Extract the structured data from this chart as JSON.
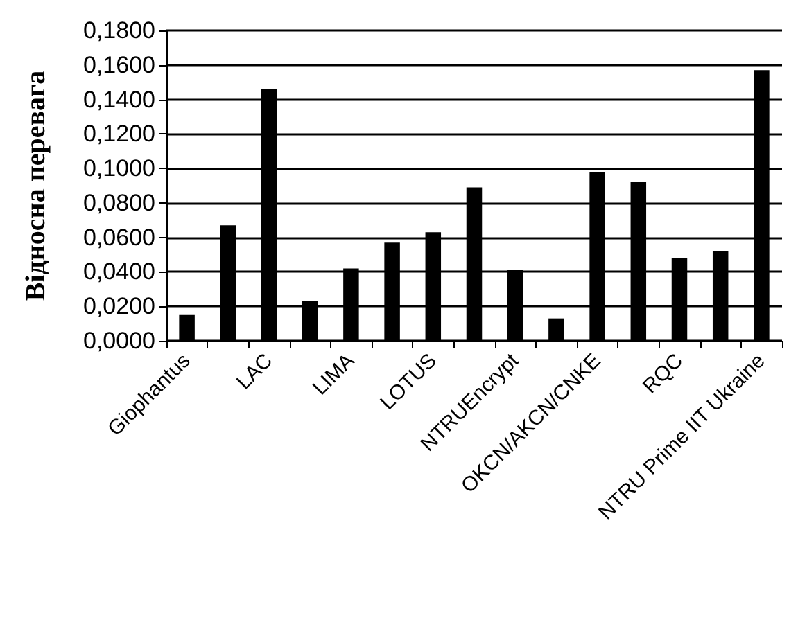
{
  "chart_data": {
    "type": "bar",
    "ylabel": "Відносна перевага",
    "categories": [
      "Giophantus",
      null,
      "LAC",
      null,
      "LIMA",
      null,
      "LOTUS",
      null,
      "NTRUEncrypt",
      null,
      "OKCN/AKCN/CNKE",
      null,
      "RQC",
      null,
      "NTRU Prime IIT Ukraine"
    ],
    "values": [
      0.015,
      0.067,
      0.146,
      0.023,
      0.042,
      0.057,
      0.063,
      0.089,
      0.041,
      0.013,
      0.098,
      0.092,
      0.048,
      0.052,
      0.157
    ],
    "color": "#000000",
    "ylim": [
      0,
      0.18
    ],
    "yticks": [
      {
        "value": 0,
        "label": "0,0000"
      },
      {
        "value": 0.02,
        "label": "0,0200"
      },
      {
        "value": 0.04,
        "label": "0,0400"
      },
      {
        "value": 0.06,
        "label": "0,0600"
      },
      {
        "value": 0.08,
        "label": "0,0800"
      },
      {
        "value": 0.1,
        "label": "0,1000"
      },
      {
        "value": 0.12,
        "label": "0,1200"
      },
      {
        "value": 0.14,
        "label": "0,1400"
      },
      {
        "value": 0.16,
        "label": "0,1600"
      },
      {
        "value": 0.18,
        "label": "0,1800"
      }
    ],
    "grid": "y"
  }
}
